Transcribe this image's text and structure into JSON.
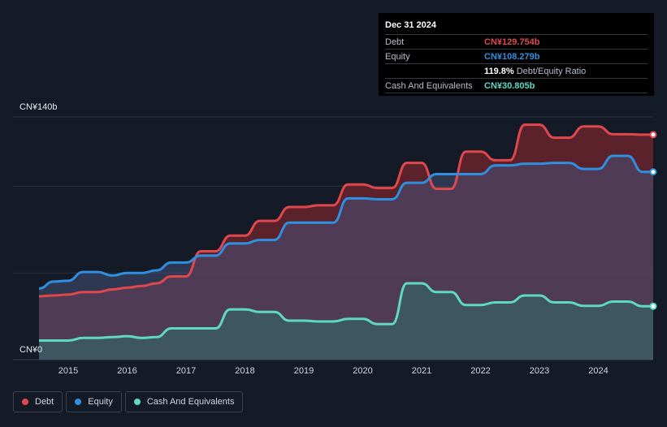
{
  "tooltip": {
    "date": "Dec 31 2024",
    "debt_label": "Debt",
    "debt_value": "CN¥129.754b",
    "equity_label": "Equity",
    "equity_value": "CN¥108.279b",
    "ratio_value": "119.8%",
    "ratio_label": "Debt/Equity Ratio",
    "cash_label": "Cash And Equivalents",
    "cash_value": "CN¥30.805b"
  },
  "legend": {
    "debt": "Debt",
    "equity": "Equity",
    "cash": "Cash And Equivalents"
  },
  "colors": {
    "debt": "#e0484d",
    "equity": "#2f8fe0",
    "cash": "#5fd8c4",
    "background": "#141b27"
  },
  "chart_data": {
    "type": "area",
    "ytick_labels": [
      "CN¥0",
      "CN¥140b"
    ],
    "ylim": [
      0,
      140
    ],
    "xlim": [
      2014.5,
      2025.0
    ],
    "xtick_labels": [
      "2015",
      "2016",
      "2017",
      "2018",
      "2019",
      "2020",
      "2021",
      "2022",
      "2023",
      "2024"
    ],
    "xticks": [
      2015,
      2016,
      2017,
      2018,
      2019,
      2020,
      2021,
      2022,
      2023,
      2024
    ],
    "grid": true,
    "legend_position": "bottom-left",
    "series": [
      {
        "name": "Debt",
        "x": [
          2014.5,
          2014.75,
          2015.0,
          2015.25,
          2015.5,
          2015.75,
          2016.0,
          2016.25,
          2016.5,
          2016.75,
          2017.0,
          2017.25,
          2017.5,
          2017.75,
          2018.0,
          2018.25,
          2018.5,
          2018.75,
          2019.0,
          2019.25,
          2019.5,
          2019.75,
          2020.0,
          2020.25,
          2020.5,
          2020.75,
          2021.0,
          2021.25,
          2021.5,
          2021.75,
          2022.0,
          2022.25,
          2022.5,
          2022.75,
          2023.0,
          2023.25,
          2023.5,
          2023.75,
          2024.0,
          2024.25,
          2024.5,
          2024.75,
          2025.0
        ],
        "values": [
          36.5,
          37,
          37.5,
          39,
          39,
          40.5,
          41.5,
          42.5,
          44,
          48,
          48,
          62.5,
          62.5,
          71.5,
          71.5,
          80,
          80,
          88,
          88,
          89,
          89,
          101,
          101,
          99,
          99,
          113.5,
          113.5,
          98.5,
          98.5,
          120,
          120,
          115,
          115,
          135.5,
          135.5,
          128,
          128,
          134.5,
          134.5,
          130,
          130,
          129.754,
          129.754
        ]
      },
      {
        "name": "Equity",
        "x": [
          2014.5,
          2014.75,
          2015.0,
          2015.25,
          2015.5,
          2015.75,
          2016.0,
          2016.25,
          2016.5,
          2016.75,
          2017.0,
          2017.25,
          2017.5,
          2017.75,
          2018.0,
          2018.25,
          2018.5,
          2018.75,
          2019.0,
          2019.25,
          2019.5,
          2019.75,
          2020.0,
          2020.25,
          2020.5,
          2020.75,
          2021.0,
          2021.25,
          2021.5,
          2021.75,
          2022.0,
          2022.25,
          2022.5,
          2022.75,
          2023.0,
          2023.25,
          2023.5,
          2023.75,
          2024.0,
          2024.25,
          2024.5,
          2024.75,
          2025.0
        ],
        "values": [
          41,
          45,
          45.5,
          50.5,
          50.5,
          48.5,
          50,
          50,
          51.5,
          56,
          56,
          60,
          60,
          67,
          67,
          69,
          69,
          79,
          79,
          79,
          79,
          93,
          93,
          92.5,
          92.5,
          102,
          102,
          107,
          107,
          107,
          107,
          112,
          112,
          113,
          113,
          113.5,
          113.5,
          110,
          110,
          117.5,
          117.5,
          108.279,
          108.279
        ]
      },
      {
        "name": "Cash And Equivalents",
        "x": [
          2014.5,
          2014.75,
          2015.0,
          2015.25,
          2015.5,
          2015.75,
          2016.0,
          2016.25,
          2016.5,
          2016.75,
          2017.0,
          2017.25,
          2017.5,
          2017.75,
          2018.0,
          2018.25,
          2018.5,
          2018.75,
          2019.0,
          2019.25,
          2019.5,
          2019.75,
          2020.0,
          2020.25,
          2020.5,
          2020.75,
          2021.0,
          2021.25,
          2021.5,
          2021.75,
          2022.0,
          2022.25,
          2022.5,
          2022.75,
          2023.0,
          2023.25,
          2023.5,
          2023.75,
          2024.0,
          2024.25,
          2024.5,
          2024.75,
          2025.0
        ],
        "values": [
          11,
          11,
          11,
          12.5,
          12.5,
          13,
          13.5,
          12.5,
          13,
          18,
          18,
          18,
          18,
          29,
          29,
          27.5,
          27.5,
          22.5,
          22.5,
          22,
          22,
          23.5,
          23.5,
          20.5,
          20.5,
          44,
          44,
          39,
          39,
          31.5,
          31.5,
          33,
          33,
          37,
          37,
          33,
          33,
          31,
          31,
          33.5,
          33.5,
          30.805,
          30.805
        ]
      }
    ]
  }
}
